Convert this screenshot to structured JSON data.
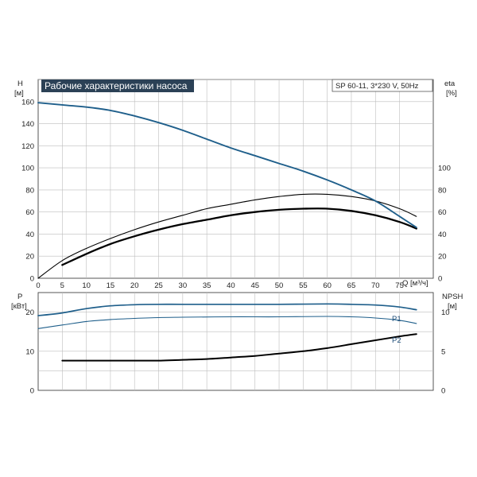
{
  "chart_data": [
    {
      "type": "line",
      "title": "Рабочие характеристики насоса",
      "model": "SP 60-11, 3*230 V, 50Hz",
      "xlabel": "Q [м³/ч]",
      "ylabel_left": [
        "H",
        "[м]"
      ],
      "ylabel_right": [
        "eta",
        "[%]"
      ],
      "xlim": [
        0,
        82
      ],
      "ylim_left": [
        0,
        180
      ],
      "ylim_right_ticks": [
        0,
        20,
        40,
        60,
        80,
        100
      ],
      "x_ticks": [
        0,
        5,
        10,
        15,
        20,
        25,
        30,
        35,
        40,
        45,
        50,
        55,
        60,
        65,
        70,
        75
      ],
      "y_ticks_left": [
        0,
        20,
        40,
        60,
        80,
        100,
        120,
        140,
        160
      ],
      "grid": true,
      "series": [
        {
          "name": "H",
          "color": "#1f5f8b",
          "x": [
            0,
            5,
            10,
            15,
            20,
            25,
            30,
            35,
            40,
            45,
            50,
            55,
            60,
            65,
            70,
            75,
            78.5
          ],
          "y": [
            159,
            157,
            155,
            152,
            147,
            141,
            134,
            126,
            118,
            111,
            104,
            97,
            89,
            80,
            70,
            56,
            46
          ]
        },
        {
          "name": "eta",
          "color": "#000000",
          "x": [
            5,
            10,
            15,
            20,
            25,
            30,
            35,
            40,
            45,
            50,
            55,
            60,
            65,
            70,
            75,
            78.5
          ],
          "y": [
            12,
            22,
            31,
            38,
            44,
            49,
            53,
            57,
            60,
            62,
            63,
            63,
            61,
            57,
            51,
            45
          ]
        },
        {
          "name": "eta-thin",
          "color": "#000000",
          "x": [
            0,
            5,
            10,
            15,
            20,
            25,
            30,
            35,
            40,
            45,
            50,
            55,
            60,
            65,
            70,
            75,
            78.5
          ],
          "y": [
            0,
            16,
            27,
            36,
            44,
            51,
            57,
            63,
            67,
            71,
            74,
            76,
            76,
            74,
            70,
            63,
            56
          ]
        }
      ]
    },
    {
      "type": "line",
      "ylabel_left": [
        "P",
        "[кВт]"
      ],
      "ylabel_right": [
        "NPSH",
        "[м]"
      ],
      "xlim": [
        0,
        82
      ],
      "ylim_left": [
        0,
        25
      ],
      "y_ticks_left": [
        0,
        10,
        20
      ],
      "y_ticks_right": [
        0,
        5,
        10
      ],
      "grid": true,
      "series": [
        {
          "name": "P1",
          "color": "#1f5f8b",
          "x": [
            0,
            5,
            10,
            15,
            20,
            25,
            30,
            40,
            50,
            60,
            65,
            70,
            75,
            78.5
          ],
          "y": [
            19.1,
            19.8,
            20.9,
            21.6,
            21.9,
            22.0,
            22.0,
            22.0,
            22.0,
            22.1,
            22.0,
            21.8,
            21.3,
            20.6
          ]
        },
        {
          "name": "P2",
          "color": "#1f5f8b",
          "x": [
            0,
            5,
            10,
            15,
            20,
            25,
            30,
            40,
            50,
            60,
            65,
            70,
            75,
            78.5
          ],
          "y": [
            15.8,
            16.7,
            17.6,
            18.1,
            18.4,
            18.6,
            18.7,
            18.8,
            18.8,
            18.9,
            18.8,
            18.5,
            17.9,
            17.1
          ]
        },
        {
          "name": "NPSH",
          "color": "#000000",
          "x": [
            5,
            10,
            15,
            20,
            25,
            30,
            35,
            40,
            45,
            50,
            55,
            60,
            65,
            70,
            75,
            78.5
          ],
          "y": [
            3.8,
            3.8,
            3.8,
            3.8,
            3.8,
            3.9,
            4.0,
            4.2,
            4.4,
            4.7,
            5.0,
            5.4,
            5.9,
            6.4,
            6.9,
            7.2
          ]
        }
      ]
    }
  ]
}
